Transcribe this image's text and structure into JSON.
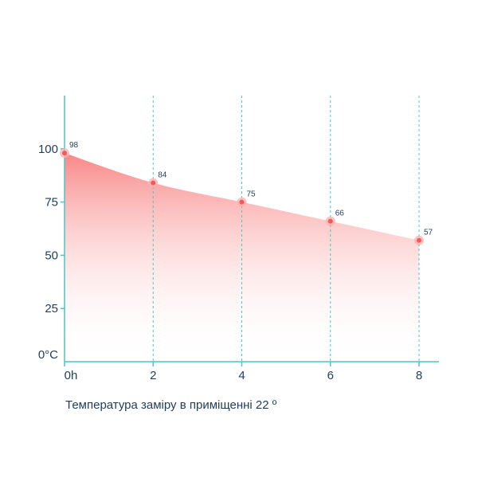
{
  "caption": "Температура заміру в приміщенні 22 º",
  "colors": {
    "axis": "#4fc3c6",
    "grid": "#4fc3c6",
    "text": "#1f3d5c",
    "area_top": "#f87272",
    "point": "#f05a5a",
    "point_halo": "#f9b0b0"
  },
  "chart_data": {
    "type": "area",
    "x": [
      0,
      2,
      4,
      6,
      8
    ],
    "x_tick_labels": [
      "0h",
      "2",
      "4",
      "6",
      "8"
    ],
    "values": [
      98,
      84,
      75,
      66,
      57
    ],
    "data_labels": [
      "98",
      "84",
      "75",
      "66",
      "57"
    ],
    "y_ticks": [
      0,
      25,
      50,
      75,
      100
    ],
    "y_tick_labels": [
      "0°C",
      "25",
      "50",
      "75",
      "100"
    ],
    "xlim": [
      0,
      8
    ],
    "ylim": [
      0,
      125
    ],
    "grid": "vertical dashed at x ticks",
    "smooth": true
  }
}
